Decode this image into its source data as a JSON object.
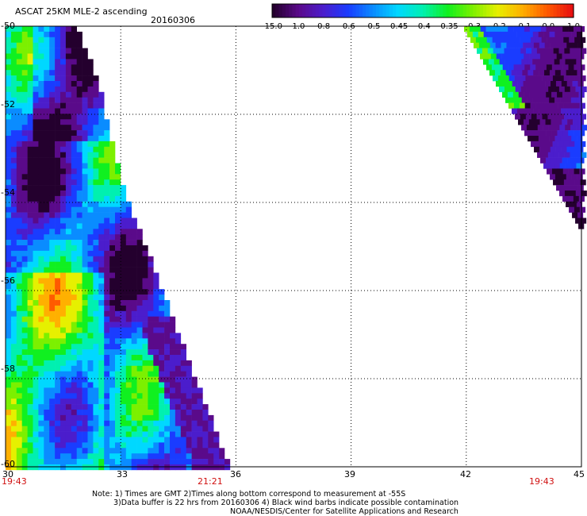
{
  "header": {
    "title": "ASCAT 25KM MLE-2 ascending",
    "date": "20160306"
  },
  "colorbar": {
    "labels": [
      "-15.0",
      "-1.0",
      "-0.8",
      "-0.6",
      "-0.5",
      "-0.45",
      "-0.4",
      "-0.35",
      "-0.3",
      "-0.2",
      "-0.1",
      "0.0",
      "1.0"
    ],
    "colors": [
      "#24002e",
      "#5a0a8a",
      "#4b1dcc",
      "#1a3cff",
      "#0a8cff",
      "#00d8ff",
      "#00f0b0",
      "#10f020",
      "#7cf000",
      "#e6f000",
      "#ffb000",
      "#ff5a00",
      "#e81010"
    ]
  },
  "map": {
    "lon_range": [
      30,
      45
    ],
    "lat_range": [
      -60,
      -50
    ],
    "x_ticks": [
      "30",
      "33",
      "36",
      "39",
      "42",
      "45"
    ],
    "y_ticks": [
      "-50",
      "-52",
      "-54",
      "-56",
      "-58",
      "-60"
    ],
    "times": [
      "19:43",
      "21:21",
      "19:43"
    ]
  },
  "notes": [
    "Note: 1) Times are GMT 2)Times along bottom correspond to measurement at -55S",
    "3)Data buffer is 22 hrs from 20160306 4) Black wind barbs indicate possible contamination",
    "NOAA/NESDIS/Center for Satellite Applications and Research"
  ]
}
